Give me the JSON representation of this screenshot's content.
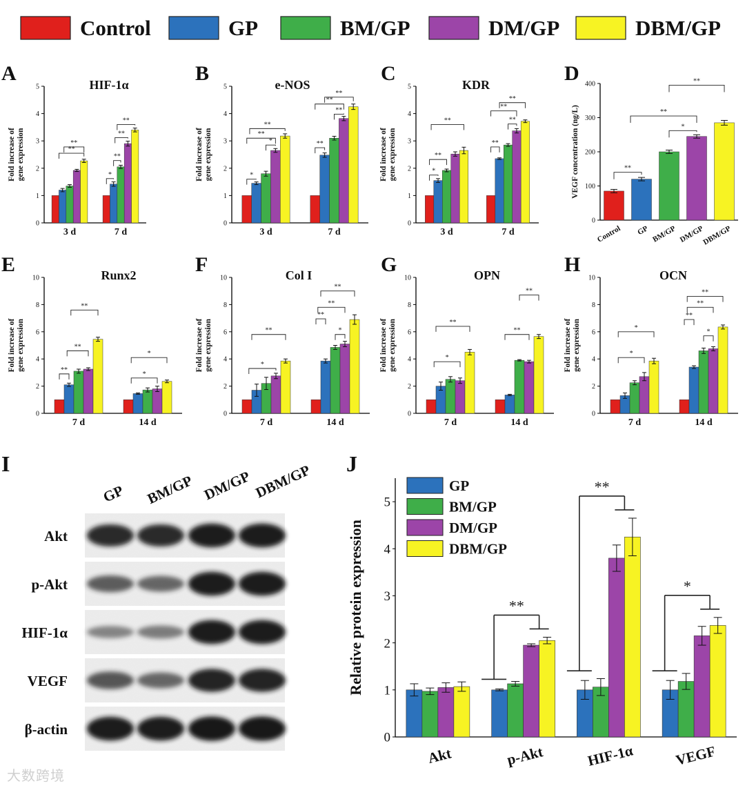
{
  "colors": {
    "Control": "#e0201c",
    "GP": "#2c72bc",
    "BM/GP": "#3fae49",
    "DM/GP": "#9c45a8",
    "DBM/GP": "#f7f323"
  },
  "legend": [
    "Control",
    "GP",
    "BM/GP",
    "DM/GP",
    "DBM/GP"
  ],
  "watermark": "大数跨境",
  "gene_ylabel": [
    "Fold increase of",
    "gene expression"
  ],
  "chart_data": [
    {
      "panel": "A",
      "type": "bar",
      "title": "HIF-1α",
      "categories": [
        "3 d",
        "7 d"
      ],
      "ylim": [
        0,
        5
      ],
      "yticks": [
        0,
        1,
        2,
        3,
        4,
        5
      ],
      "series": [
        {
          "name": "Control",
          "values": [
            1,
            1
          ],
          "errors": [
            0,
            0
          ]
        },
        {
          "name": "GP",
          "values": [
            1.2,
            1.42
          ],
          "errors": [
            0.06,
            0.08
          ]
        },
        {
          "name": "BM/GP",
          "values": [
            1.35,
            2.05
          ],
          "errors": [
            0.05,
            0.06
          ]
        },
        {
          "name": "DM/GP",
          "values": [
            1.92,
            2.9
          ],
          "errors": [
            0.04,
            0.09
          ]
        },
        {
          "name": "DBM/GP",
          "values": [
            2.27,
            3.4
          ],
          "errors": [
            0.06,
            0.07
          ]
        }
      ],
      "sig": [
        {
          "g": 0,
          "from": 4,
          "to": 0.5,
          "y": 2.55,
          "t": "**"
        },
        {
          "g": 0,
          "from": 4,
          "to": 1.2,
          "y": 2.78,
          "t": "**"
        },
        {
          "g": 1,
          "from": 1,
          "to": 0,
          "y": 1.62,
          "t": "*"
        },
        {
          "g": 1,
          "from": 2,
          "to": 1,
          "y": 2.28,
          "t": "**"
        },
        {
          "g": 1,
          "from": 3,
          "to": 1.2,
          "y": 3.12,
          "t": "**"
        },
        {
          "g": 1,
          "from": 4,
          "to": 1.5,
          "y": 3.6,
          "t": "**"
        }
      ]
    },
    {
      "panel": "B",
      "type": "bar",
      "title": "e-NOS",
      "categories": [
        "3 d",
        "7 d"
      ],
      "ylim": [
        0,
        5
      ],
      "yticks": [
        0,
        1,
        2,
        3,
        4,
        5
      ],
      "series": [
        {
          "name": "Control",
          "values": [
            1,
            1
          ],
          "errors": [
            0,
            0
          ]
        },
        {
          "name": "GP",
          "values": [
            1.45,
            2.48
          ],
          "errors": [
            0.05,
            0.08
          ]
        },
        {
          "name": "BM/GP",
          "values": [
            1.8,
            3.1
          ],
          "errors": [
            0.09,
            0.07
          ]
        },
        {
          "name": "DM/GP",
          "values": [
            2.65,
            3.82
          ],
          "errors": [
            0.07,
            0.08
          ]
        },
        {
          "name": "DBM/GP",
          "values": [
            3.18,
            4.25
          ],
          "errors": [
            0.08,
            0.1
          ]
        }
      ],
      "sig": [
        {
          "g": 0,
          "from": 1,
          "to": 0,
          "y": 1.6,
          "t": "*"
        },
        {
          "g": 0,
          "from": 3,
          "to": 2,
          "y": 2.85,
          "t": "*"
        },
        {
          "g": 0,
          "from": 4,
          "to": 0.3,
          "y": 3.45,
          "t": "**"
        },
        {
          "g": 0,
          "from": 3,
          "to": 0,
          "y": 3.1,
          "t": "**"
        },
        {
          "g": 1,
          "from": 1,
          "to": 0,
          "y": 2.75,
          "t": "**"
        },
        {
          "g": 1,
          "from": 3,
          "to": 2,
          "y": 3.98,
          "t": "**"
        },
        {
          "g": 1,
          "from": 3,
          "to": 0,
          "y": 4.35,
          "t": "**"
        },
        {
          "g": 1,
          "from": 4,
          "to": 1,
          "y": 4.6,
          "t": "**"
        }
      ]
    },
    {
      "panel": "C",
      "type": "bar",
      "title": "KDR",
      "categories": [
        "3 d",
        "7 d"
      ],
      "ylim": [
        0,
        5
      ],
      "yticks": [
        0,
        1,
        2,
        3,
        4,
        5
      ],
      "series": [
        {
          "name": "Control",
          "values": [
            1,
            1
          ],
          "errors": [
            0,
            0
          ]
        },
        {
          "name": "GP",
          "values": [
            1.55,
            2.35
          ],
          "errors": [
            0.07,
            0.03
          ]
        },
        {
          "name": "BM/GP",
          "values": [
            1.92,
            2.85
          ],
          "errors": [
            0.05,
            0.05
          ]
        },
        {
          "name": "DM/GP",
          "values": [
            2.52,
            3.37
          ],
          "errors": [
            0.08,
            0.08
          ]
        },
        {
          "name": "DBM/GP",
          "values": [
            2.65,
            3.72
          ],
          "errors": [
            0.12,
            0.05
          ]
        }
      ],
      "sig": [
        {
          "g": 0,
          "from": 1,
          "to": 0,
          "y": 1.75,
          "t": "*"
        },
        {
          "g": 0,
          "from": 2,
          "to": 0,
          "y": 2.32,
          "t": "**"
        },
        {
          "g": 0,
          "from": 4,
          "to": 0.2,
          "y": 3.6,
          "t": "**"
        },
        {
          "g": 1,
          "from": 1,
          "to": 0,
          "y": 2.78,
          "t": "**"
        },
        {
          "g": 1,
          "from": 3,
          "to": 2,
          "y": 3.62,
          "t": "**"
        },
        {
          "g": 1,
          "from": 3,
          "to": 0,
          "y": 4.1,
          "t": "**"
        },
        {
          "g": 1,
          "from": 4,
          "to": 1,
          "y": 4.4,
          "t": "**"
        }
      ]
    },
    {
      "panel": "D",
      "type": "bar",
      "title": "",
      "ylabel": "VEGF concentration (ng/L)",
      "categories": [
        "Control",
        "GP",
        "BM/GP",
        "DM/GP",
        "DBM/GP"
      ],
      "ylim": [
        0,
        400
      ],
      "yticks": [
        0,
        100,
        200,
        300,
        400
      ],
      "values": [
        85,
        120,
        200,
        245,
        285
      ],
      "errors": [
        5,
        5,
        5,
        5,
        7
      ],
      "sig": [
        {
          "from": 1,
          "to": 0,
          "y": 140,
          "t": "**"
        },
        {
          "from": 3,
          "to": 2,
          "y": 262,
          "t": "*"
        },
        {
          "from": 3,
          "to": 0.6,
          "y": 305,
          "t": "**"
        },
        {
          "from": 4,
          "to": 2,
          "y": 395,
          "t": "**"
        }
      ]
    },
    {
      "panel": "E",
      "type": "bar",
      "title": "Runx2",
      "categories": [
        "7 d",
        "14 d"
      ],
      "ylim": [
        0,
        10
      ],
      "yticks": [
        0,
        2,
        4,
        6,
        8,
        10
      ],
      "series": [
        {
          "name": "Control",
          "values": [
            1,
            1
          ],
          "errors": [
            0,
            0
          ]
        },
        {
          "name": "GP",
          "values": [
            2.1,
            1.45
          ],
          "errors": [
            0.12,
            0.05
          ]
        },
        {
          "name": "BM/GP",
          "values": [
            3.1,
            1.72
          ],
          "errors": [
            0.15,
            0.15
          ]
        },
        {
          "name": "DM/GP",
          "values": [
            3.25,
            1.8
          ],
          "errors": [
            0.1,
            0.2
          ]
        },
        {
          "name": "DBM/GP",
          "values": [
            5.45,
            2.35
          ],
          "errors": [
            0.15,
            0.1
          ]
        }
      ],
      "sig": [
        {
          "g": 0,
          "from": 1,
          "to": 0,
          "y": 2.9,
          "t": "**"
        },
        {
          "g": 0,
          "from": 3,
          "to": 0.8,
          "y": 4.6,
          "t": "**"
        },
        {
          "g": 0,
          "from": 4,
          "to": 1.2,
          "y": 7.6,
          "t": "**"
        },
        {
          "g": 1,
          "from": 3,
          "to": 0.3,
          "y": 2.6,
          "t": "*"
        },
        {
          "g": 1,
          "from": 4,
          "to": 0.3,
          "y": 4.1,
          "t": "*"
        }
      ]
    },
    {
      "panel": "F",
      "type": "bar",
      "title": "Col I",
      "categories": [
        "7 d",
        "14 d"
      ],
      "ylim": [
        0,
        10
      ],
      "yticks": [
        0,
        2,
        4,
        6,
        8,
        10
      ],
      "series": [
        {
          "name": "Control",
          "values": [
            1,
            1
          ],
          "errors": [
            0,
            0
          ]
        },
        {
          "name": "GP",
          "values": [
            1.7,
            3.85
          ],
          "errors": [
            0.45,
            0.15
          ]
        },
        {
          "name": "BM/GP",
          "values": [
            2.2,
            4.85
          ],
          "errors": [
            0.45,
            0.15
          ]
        },
        {
          "name": "DM/GP",
          "values": [
            2.75,
            5.1
          ],
          "errors": [
            0.2,
            0.2
          ]
        },
        {
          "name": "DBM/GP",
          "values": [
            3.85,
            6.9
          ],
          "errors": [
            0.15,
            0.35
          ]
        }
      ],
      "sig": [
        {
          "g": 0,
          "from": 3,
          "to": 0.2,
          "y": 3.3,
          "t": "*"
        },
        {
          "g": 0,
          "from": 4,
          "to": 0.5,
          "y": 5.8,
          "t": "**"
        },
        {
          "g": 1,
          "from": 1,
          "to": 0,
          "y": 6.95,
          "t": "**"
        },
        {
          "g": 1,
          "from": 3,
          "to": 2,
          "y": 5.8,
          "t": "*"
        },
        {
          "g": 1,
          "from": 3,
          "to": 0.2,
          "y": 7.8,
          "t": "**"
        },
        {
          "g": 1,
          "from": 4,
          "to": 0.5,
          "y": 9.0,
          "t": "**"
        }
      ]
    },
    {
      "panel": "G",
      "type": "bar",
      "title": "OPN",
      "categories": [
        "7 d",
        "14 d"
      ],
      "ylim": [
        0,
        10
      ],
      "yticks": [
        0,
        2,
        4,
        6,
        8,
        10
      ],
      "series": [
        {
          "name": "Control",
          "values": [
            1,
            1
          ],
          "errors": [
            0,
            0
          ]
        },
        {
          "name": "GP",
          "values": [
            2.0,
            1.35
          ],
          "errors": [
            0.3,
            0.05
          ]
        },
        {
          "name": "BM/GP",
          "values": [
            2.5,
            3.9
          ],
          "errors": [
            0.2,
            0.05
          ]
        },
        {
          "name": "DM/GP",
          "values": [
            2.4,
            3.8
          ],
          "errors": [
            0.2,
            0.1
          ]
        },
        {
          "name": "DBM/GP",
          "values": [
            4.5,
            5.65
          ],
          "errors": [
            0.2,
            0.15
          ]
        }
      ],
      "sig": [
        {
          "g": 0,
          "from": 3,
          "to": 0.3,
          "y": 3.8,
          "t": "*"
        },
        {
          "g": 0,
          "from": 4,
          "to": 0.5,
          "y": 6.4,
          "t": "**"
        },
        {
          "g": 1,
          "from": 3,
          "to": 0.5,
          "y": 5.8,
          "t": "**"
        },
        {
          "g": 1,
          "from": 4,
          "to": 2,
          "y": 8.7,
          "t": "**"
        }
      ]
    },
    {
      "panel": "H",
      "type": "bar",
      "title": "OCN",
      "categories": [
        "7 d",
        "14 d"
      ],
      "ylim": [
        0,
        10
      ],
      "yticks": [
        0,
        2,
        4,
        6,
        8,
        10
      ],
      "series": [
        {
          "name": "Control",
          "values": [
            1,
            1
          ],
          "errors": [
            0,
            0
          ]
        },
        {
          "name": "GP",
          "values": [
            1.3,
            3.4
          ],
          "errors": [
            0.2,
            0.1
          ]
        },
        {
          "name": "BM/GP",
          "values": [
            2.25,
            4.6
          ],
          "errors": [
            0.15,
            0.2
          ]
        },
        {
          "name": "DM/GP",
          "values": [
            2.7,
            4.75
          ],
          "errors": [
            0.3,
            0.15
          ]
        },
        {
          "name": "DBM/GP",
          "values": [
            3.85,
            6.35
          ],
          "errors": [
            0.2,
            0.15
          ]
        }
      ],
      "sig": [
        {
          "g": 0,
          "from": 3,
          "to": 0.3,
          "y": 4.1,
          "t": "*"
        },
        {
          "g": 0,
          "from": 4,
          "to": 0.3,
          "y": 6.0,
          "t": "*"
        },
        {
          "g": 1,
          "from": 1,
          "to": 0,
          "y": 6.9,
          "t": "**"
        },
        {
          "g": 1,
          "from": 3,
          "to": 2,
          "y": 5.7,
          "t": "*"
        },
        {
          "g": 1,
          "from": 3,
          "to": 0.3,
          "y": 7.8,
          "t": "**"
        },
        {
          "g": 1,
          "from": 4,
          "to": 0.3,
          "y": 8.6,
          "t": "**"
        }
      ]
    },
    {
      "panel": "J",
      "type": "bar",
      "title": "",
      "ylabel": "Relative protein expression",
      "categories": [
        "Akt",
        "p-Akt",
        "HIF-1α",
        "VEGF"
      ],
      "ylim": [
        0,
        5.5
      ],
      "yticks": [
        0,
        1,
        2,
        3,
        4,
        5
      ],
      "legend": [
        "GP",
        "BM/GP",
        "DM/GP",
        "DBM/GP"
      ],
      "series": [
        {
          "name": "GP",
          "values": [
            1.0,
            1.0,
            1.0,
            1.0
          ],
          "errors": [
            0.13,
            0.02,
            0.2,
            0.2
          ]
        },
        {
          "name": "BM/GP",
          "values": [
            0.97,
            1.13,
            1.06,
            1.18
          ],
          "errors": [
            0.07,
            0.05,
            0.18,
            0.17
          ]
        },
        {
          "name": "DM/GP",
          "values": [
            1.05,
            1.95,
            3.8,
            2.15
          ],
          "errors": [
            0.1,
            0.03,
            0.28,
            0.2
          ]
        },
        {
          "name": "DBM/GP",
          "values": [
            1.07,
            2.05,
            4.25,
            2.37
          ],
          "errors": [
            0.1,
            0.07,
            0.4,
            0.17
          ]
        }
      ],
      "sig": [
        {
          "g": 1,
          "t": "**"
        },
        {
          "g": 2,
          "t": "**"
        },
        {
          "g": 3,
          "t": "*"
        }
      ]
    }
  ],
  "blot": {
    "panel": "I",
    "columns": [
      "GP",
      "BM/GP",
      "DM/GP",
      "DBM/GP"
    ],
    "rows": [
      {
        "label": "Akt",
        "intensity": [
          0.85,
          0.85,
          0.95,
          0.95
        ]
      },
      {
        "label": "p-Akt",
        "intensity": [
          0.55,
          0.5,
          0.95,
          0.95
        ]
      },
      {
        "label": "HIF-1α",
        "intensity": [
          0.3,
          0.35,
          0.95,
          0.95
        ]
      },
      {
        "label": "VEGF",
        "intensity": [
          0.6,
          0.5,
          0.9,
          0.9
        ]
      },
      {
        "label": "β-actin",
        "intensity": [
          0.95,
          0.95,
          0.98,
          0.98
        ]
      }
    ]
  }
}
